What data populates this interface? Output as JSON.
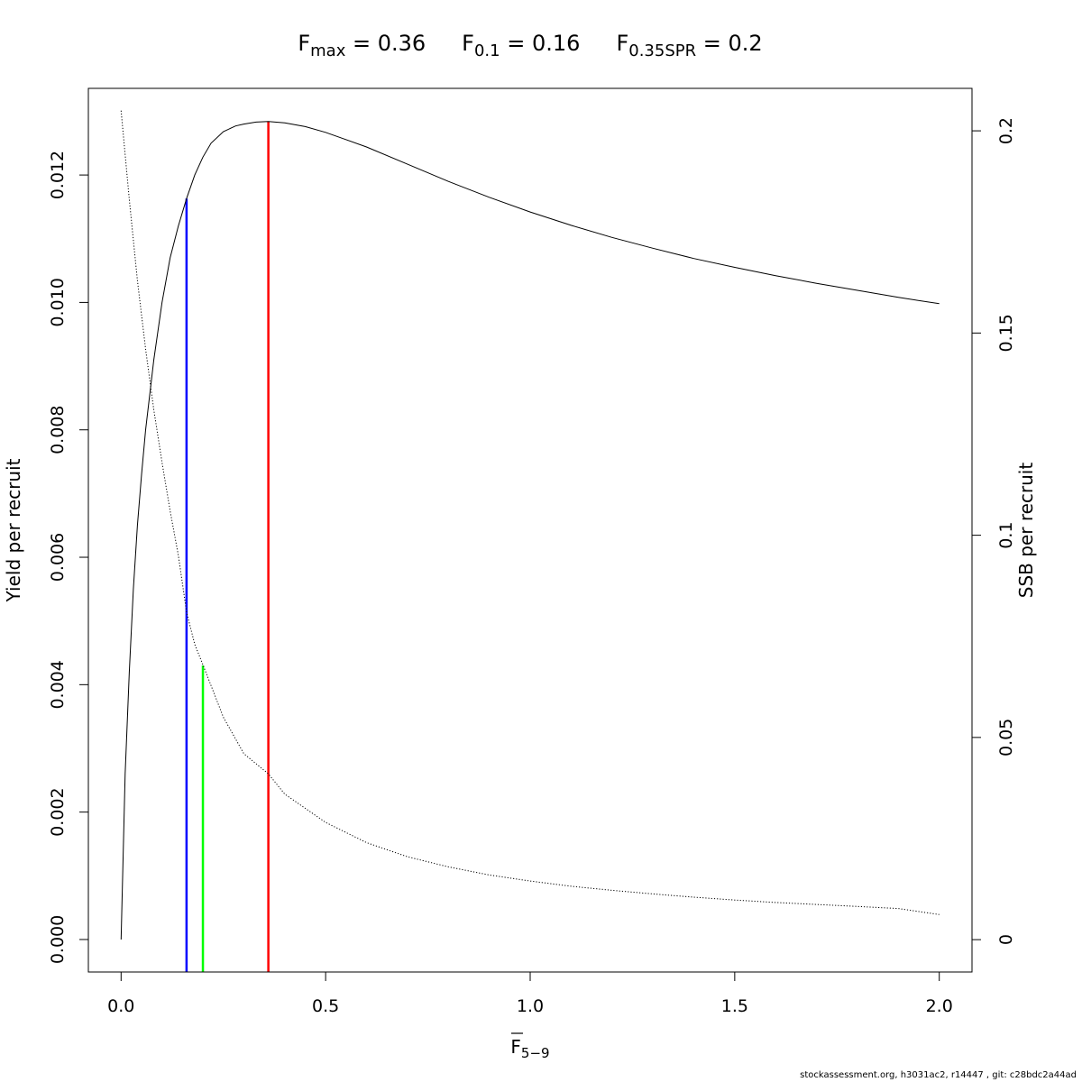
{
  "chart_data": {
    "type": "line",
    "title": {
      "parts": [
        {
          "main": "F",
          "sub": "max",
          "rest": " = 0.36"
        },
        {
          "main": "F",
          "sub": "0.1",
          "rest": " = 0.16"
        },
        {
          "main": "F",
          "sub": "0.35SPR",
          "rest": " = 0.2"
        }
      ]
    },
    "xlabel": {
      "main": "F",
      "sub": "5−9"
    },
    "ylabel_left": "Yield per recruit",
    "ylabel_right": "SSB per recruit",
    "xlim": [
      -0.08,
      2.08
    ],
    "ylim_left": [
      -0.00051,
      0.01336
    ],
    "ylim_right": [
      -0.008,
      0.2105
    ],
    "x_ticks": [
      {
        "value": 0,
        "label": "0.0"
      },
      {
        "value": 0.5,
        "label": "0.5"
      },
      {
        "value": 1,
        "label": "1.0"
      },
      {
        "value": 1.5,
        "label": "1.5"
      },
      {
        "value": 2,
        "label": "2.0"
      }
    ],
    "y_left_ticks": [
      {
        "value": 0,
        "label": "0.000"
      },
      {
        "value": 0.002,
        "label": "0.002"
      },
      {
        "value": 0.004,
        "label": "0.004"
      },
      {
        "value": 0.006,
        "label": "0.006"
      },
      {
        "value": 0.008,
        "label": "0.008"
      },
      {
        "value": 0.01,
        "label": "0.010"
      },
      {
        "value": 0.012,
        "label": "0.012"
      }
    ],
    "y_right_ticks": [
      {
        "value": 0,
        "label": "0"
      },
      {
        "value": 0.05,
        "label": "0.05"
      },
      {
        "value": 0.1,
        "label": "0.1"
      },
      {
        "value": 0.15,
        "label": "0.15"
      },
      {
        "value": 0.2,
        "label": "0.2"
      }
    ],
    "series": [
      {
        "line": "solid",
        "axis": "left",
        "color": "#000000",
        "x": [
          0,
          0.01,
          0.02,
          0.03,
          0.04,
          0.05,
          0.06,
          0.08,
          0.1,
          0.12,
          0.14,
          0.16,
          0.18,
          0.2,
          0.22,
          0.25,
          0.28,
          0.3,
          0.33,
          0.36,
          0.4,
          0.45,
          0.5,
          0.6,
          0.7,
          0.8,
          0.9,
          1.0,
          1.1,
          1.2,
          1.3,
          1.4,
          1.5,
          1.6,
          1.7,
          1.8,
          1.9,
          2.0
        ],
        "y": [
          0,
          0.0026,
          0.0042,
          0.0055,
          0.0065,
          0.0073,
          0.008,
          0.0091,
          0.01,
          0.0107,
          0.0112,
          0.01163,
          0.012,
          0.01228,
          0.0125,
          0.01268,
          0.01277,
          0.0128,
          0.01283,
          0.01284,
          0.01282,
          0.01276,
          0.01267,
          0.01244,
          0.01217,
          0.0119,
          0.01165,
          0.01142,
          0.01121,
          0.01102,
          0.01085,
          0.01069,
          0.01055,
          0.01042,
          0.0103,
          0.01019,
          0.01008,
          0.00998
        ]
      },
      {
        "line": "dotted",
        "axis": "right",
        "color": "#000000",
        "x": [
          0,
          0.02,
          0.04,
          0.06,
          0.08,
          0.1,
          0.12,
          0.14,
          0.16,
          0.18,
          0.2,
          0.25,
          0.3,
          0.36,
          0.4,
          0.5,
          0.6,
          0.7,
          0.8,
          0.9,
          1.0,
          1.1,
          1.2,
          1.3,
          1.4,
          1.5,
          1.6,
          1.7,
          1.8,
          1.9,
          2.0
        ],
        "y": [
          0.205,
          0.183,
          0.163,
          0.146,
          0.131,
          0.118,
          0.106,
          0.095,
          0.081,
          0.073,
          0.068,
          0.055,
          0.046,
          0.041,
          0.036,
          0.029,
          0.024,
          0.0205,
          0.018,
          0.016,
          0.0145,
          0.0132,
          0.0122,
          0.0113,
          0.0105,
          0.0098,
          0.0092,
          0.0087,
          0.0082,
          0.0077,
          0.0062
        ]
      }
    ],
    "reference_lines": [
      {
        "name": "F0.1",
        "x": 0.16,
        "y_top": 0.01163,
        "color": "#0000ff"
      },
      {
        "name": "F0.35SPR",
        "x": 0.2,
        "y_top": 0.0043,
        "color": "#00ff00"
      },
      {
        "name": "Fmax",
        "x": 0.36,
        "y_top": 0.01284,
        "color": "#ff0000"
      }
    ],
    "grid": false,
    "legend": "none"
  },
  "footer": "stockassessment.org, h3031ac2, r14447 , git: c28bdc2a44ad"
}
